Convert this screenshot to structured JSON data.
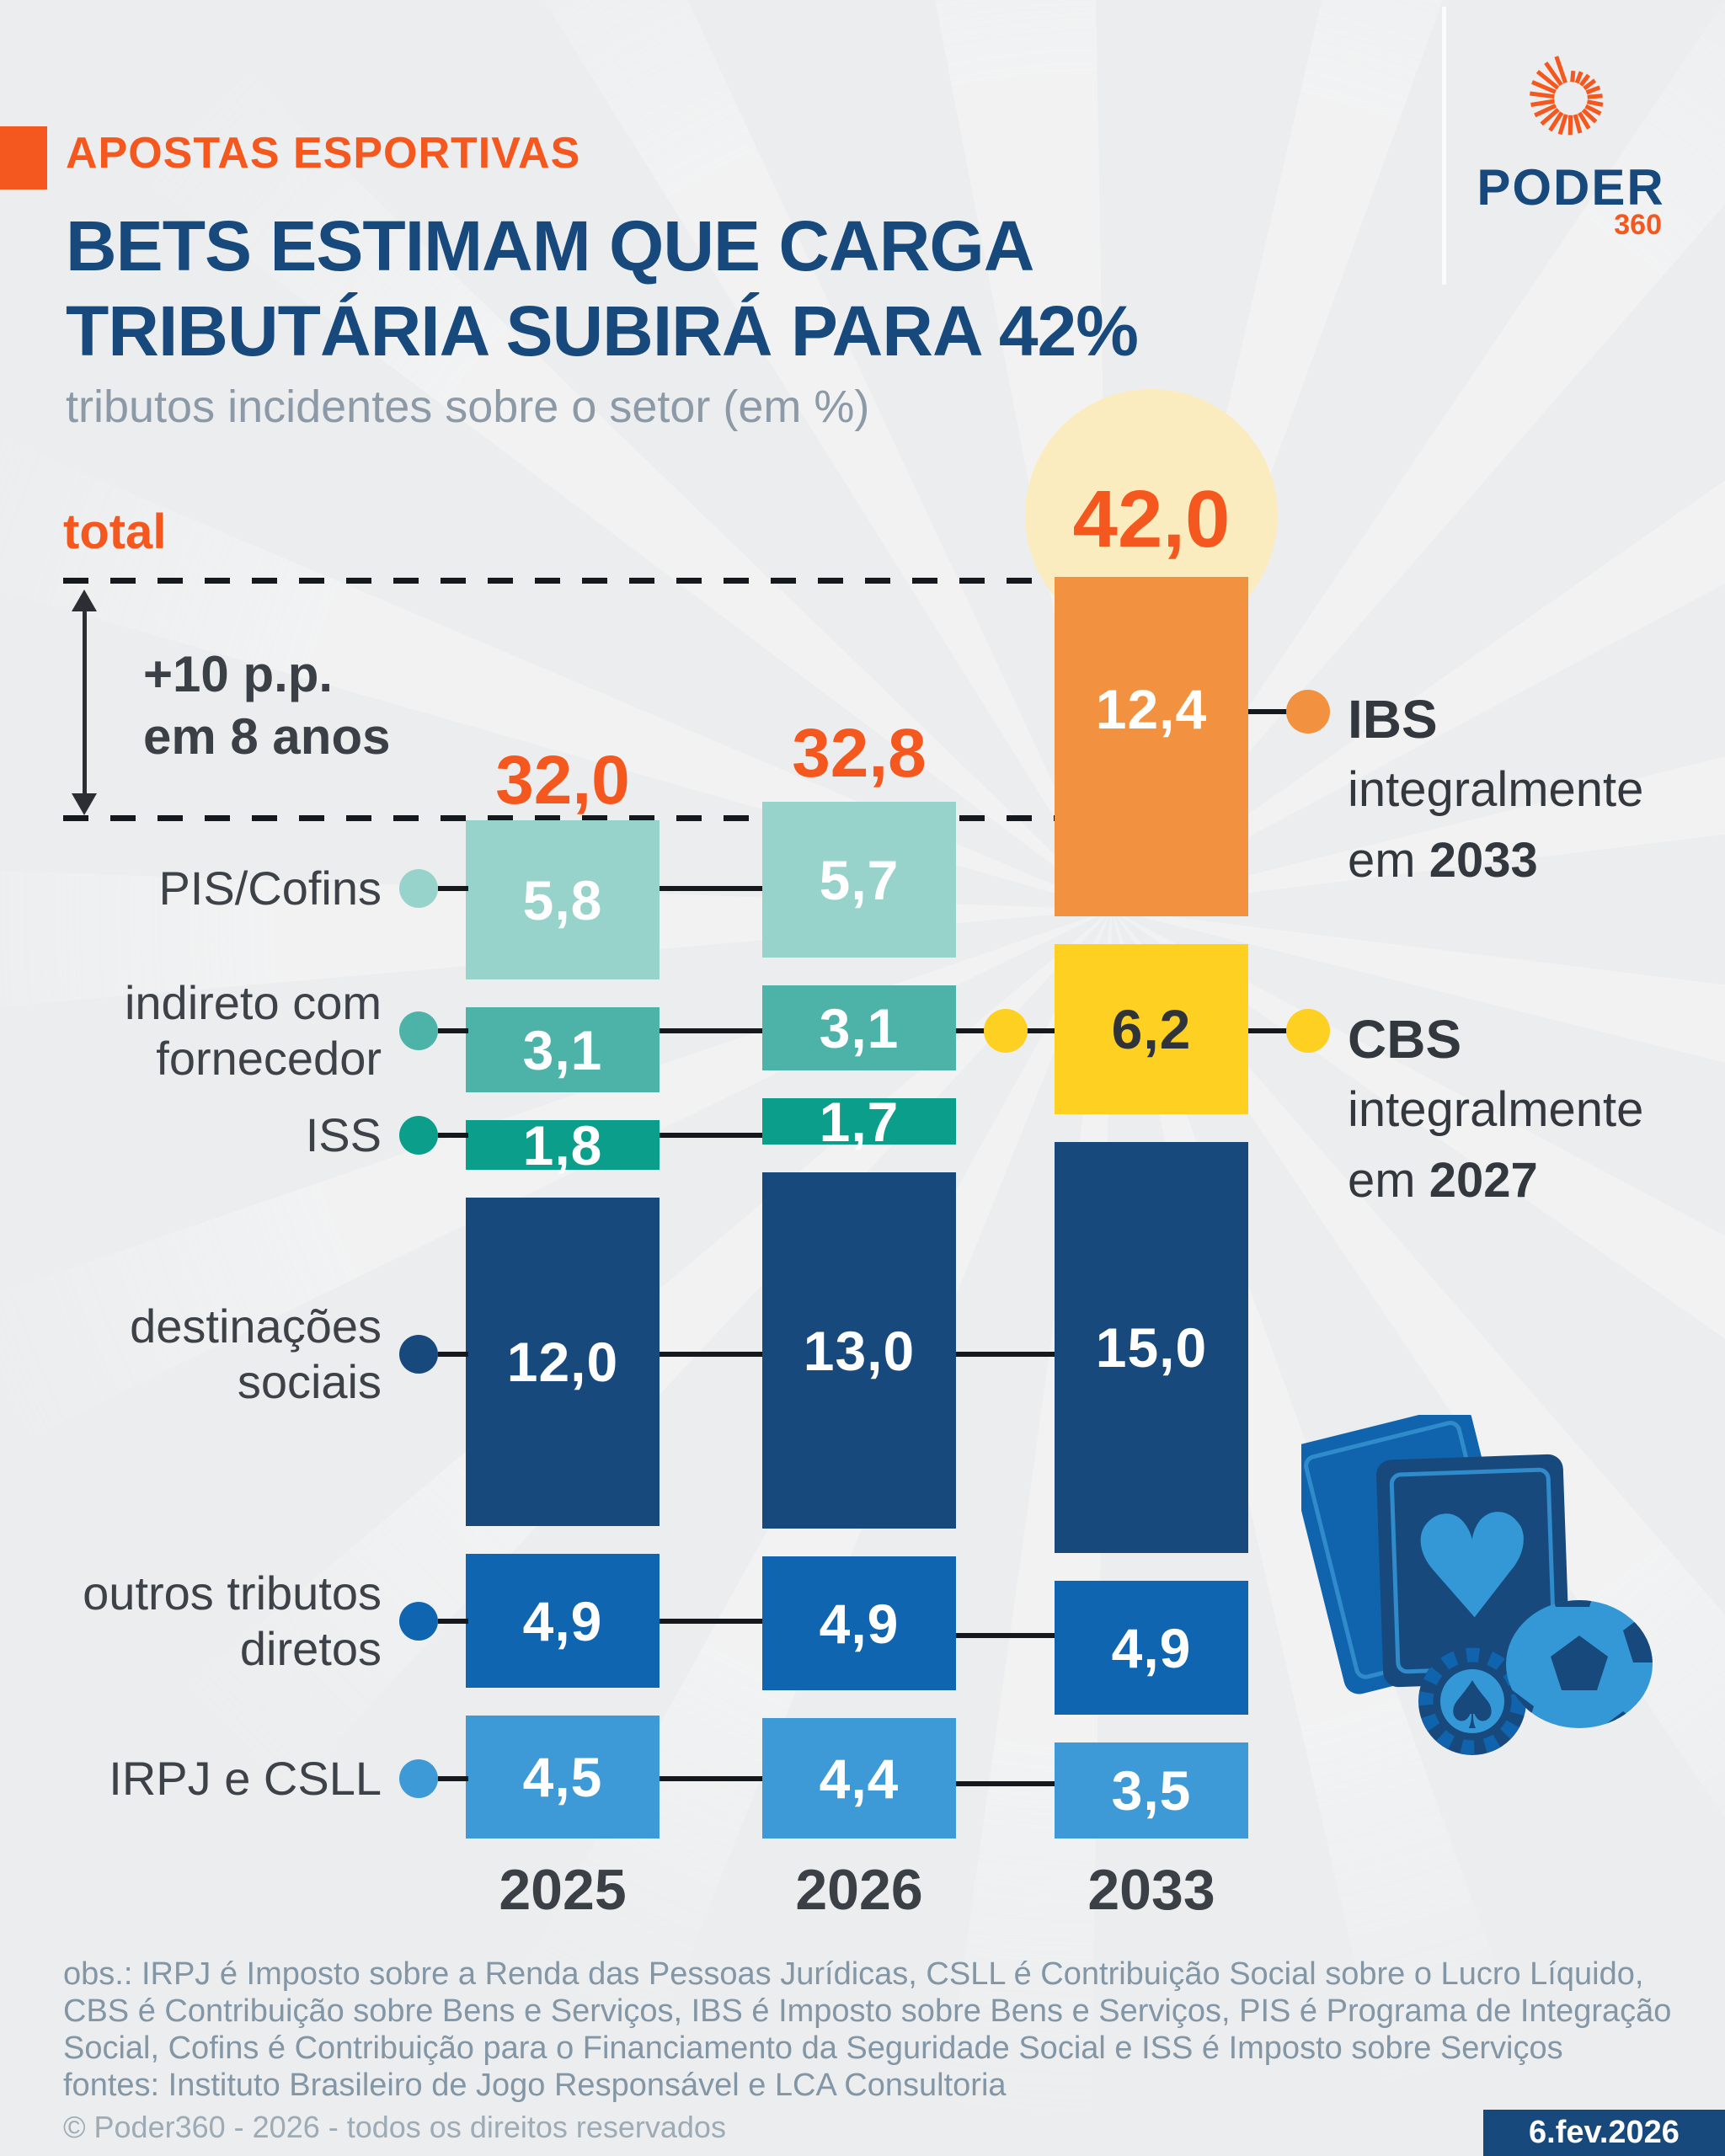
{
  "page": {
    "background": "#ecedee",
    "accent_orange": "#f4581f",
    "brand_navy": "#17497d"
  },
  "header": {
    "kicker": "APOSTAS ESPORTIVAS",
    "title_line1": "BETS ESTIMAM QUE CARGA",
    "title_line2": "TRIBUTÁRIA SUBIRÁ PARA 42%",
    "subtitle": "tributos incidentes sobre o setor (em %)"
  },
  "logo": {
    "brand": "PODER",
    "suffix": "360"
  },
  "annotations": {
    "total_label": "total",
    "delta_line1": "+10 p.p.",
    "delta_line2": "em 8 anos",
    "ibs": {
      "name": "IBS",
      "line2": "integralmente",
      "line3_prefix": "em ",
      "line3_year": "2033"
    },
    "cbs": {
      "name": "CBS",
      "line2": "integralmente",
      "line3_prefix": "em ",
      "line3_year": "2027"
    }
  },
  "row_labels": [
    {
      "lines": [
        "PIS/Cofins"
      ]
    },
    {
      "lines": [
        "indireto com",
        "fornecedor"
      ]
    },
    {
      "lines": [
        "ISS"
      ]
    },
    {
      "lines": [
        "destinações",
        "sociais"
      ]
    },
    {
      "lines": [
        "outros tributos",
        "diretos"
      ]
    },
    {
      "lines": [
        "IRPJ e CSLL"
      ]
    }
  ],
  "chart_data": {
    "type": "bar",
    "stacked": true,
    "title": "BETS ESTIMAM QUE CARGA TRIBUTÁRIA SUBIRÁ PARA 42%",
    "unit_note": "tributos incidentes sobre o setor (em %)",
    "categories": [
      "2025",
      "2026",
      "2033"
    ],
    "totals": [
      32.0,
      32.8,
      42.0
    ],
    "totals_display": [
      "32,0",
      "32,8",
      "42,0"
    ],
    "ylim": [
      0,
      45
    ],
    "grid": false,
    "legend_position": "left-labels-and-right-callouts",
    "series": [
      {
        "name": "IBS",
        "color": "#f2913f",
        "value_color": "#ffffff",
        "values": [
          null,
          null,
          12.4
        ],
        "display": [
          null,
          null,
          "12,4"
        ]
      },
      {
        "name": "PIS/Cofins",
        "color": "#97d3ca",
        "value_color": "#ffffff",
        "values": [
          5.8,
          5.7,
          null
        ],
        "display": [
          "5,8",
          "5,7",
          null
        ]
      },
      {
        "name": "CBS",
        "color": "#fdd021",
        "value_color": "#2f343b",
        "values": [
          null,
          null,
          6.2
        ],
        "display": [
          null,
          null,
          "6,2"
        ]
      },
      {
        "name": "indireto com fornecedor",
        "color": "#4db3a8",
        "value_color": "#ffffff",
        "values": [
          3.1,
          3.1,
          null
        ],
        "display": [
          "3,1",
          "3,1",
          null
        ]
      },
      {
        "name": "ISS",
        "color": "#0a9e8b",
        "value_color": "#ffffff",
        "values": [
          1.8,
          1.7,
          null
        ],
        "display": [
          "1,8",
          "1,7",
          null
        ]
      },
      {
        "name": "destinações sociais",
        "color": "#17497d",
        "value_color": "#ffffff",
        "values": [
          12.0,
          13.0,
          15.0
        ],
        "display": [
          "12,0",
          "13,0",
          "15,0"
        ]
      },
      {
        "name": "outros tributos diretos",
        "color": "#0f65b0",
        "value_color": "#ffffff",
        "values": [
          4.9,
          4.9,
          4.9
        ],
        "display": [
          "4,9",
          "4,9",
          "4,9"
        ]
      },
      {
        "name": "IRPJ e CSLL",
        "color": "#3d9ad6",
        "value_color": "#ffffff",
        "values": [
          4.5,
          4.4,
          3.5
        ],
        "display": [
          "4,5",
          "4,4",
          "3,5"
        ]
      }
    ],
    "callouts": [
      "IBS integralmente em 2033",
      "CBS integralmente em 2027"
    ],
    "delta_annotation": "+10 p.p. em 8 anos"
  },
  "footer": {
    "obs_lines": [
      "obs.: IRPJ é Imposto sobre a Renda das Pessoas Jurídicas, CSLL é Contribuição Social sobre o Lucro Líquido,",
      "CBS é Contribuição sobre Bens e Serviços, IBS é Imposto sobre Bens e Serviços, PIS é Programa de Integração",
      "Social, Cofins é Contribuição para o Financiamento da Seguridade Social e ISS é Imposto sobre Serviços",
      "fontes: Instituto Brasileiro de Jogo Responsável e LCA Consultoria"
    ],
    "copyright": "© Poder360 - 2026 - todos os direitos reservados",
    "date": "6.fev.2026"
  }
}
